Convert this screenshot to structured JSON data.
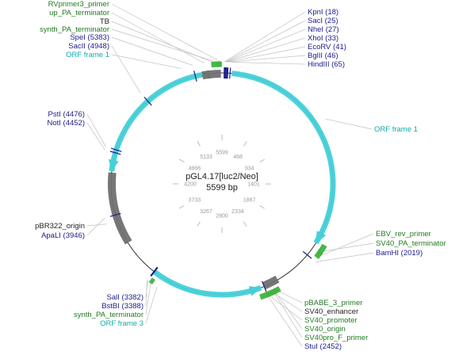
{
  "plasmid": {
    "name": "pGL4.17[luc2/Neo]",
    "length_label": "5599 bp",
    "length": 5599
  },
  "ticks": [
    {
      "pos": 5599,
      "label": "5599"
    },
    {
      "pos": 468,
      "label": "468"
    },
    {
      "pos": 934,
      "label": "934"
    },
    {
      "pos": 1401,
      "label": "1401"
    },
    {
      "pos": 1867,
      "label": "1867"
    },
    {
      "pos": 2334,
      "label": "2334"
    },
    {
      "pos": 2800,
      "label": "2800"
    },
    {
      "pos": 3267,
      "label": "3267"
    },
    {
      "pos": 3733,
      "label": "3733"
    },
    {
      "pos": 4200,
      "label": "4200"
    },
    {
      "pos": 4666,
      "label": "4666"
    },
    {
      "pos": 5133,
      "label": "5133"
    }
  ],
  "colors": {
    "backbone": "#333333",
    "orf": "#44d0d8",
    "primer": "#3fb33f",
    "region": "#707070",
    "site": "#1a1a8c",
    "site_text": "#1a1a8c",
    "feature_text": "#207a20",
    "orf_text": "#10aaaa",
    "default_text": "#222222"
  },
  "arcs": [
    {
      "name": "ORF frame 1",
      "type": "orf",
      "start": 80,
      "end": 1900,
      "dir": 1
    },
    {
      "name": "ORF frame 1",
      "type": "orf",
      "start": 4300,
      "end": 5480,
      "dir": -1
    },
    {
      "name": "ORF frame 3",
      "type": "orf",
      "start": 2480,
      "end": 3380,
      "dir": -1
    },
    {
      "name": "pBR322_origin",
      "type": "region",
      "start": 3700,
      "end": 4290,
      "dir": 0
    },
    {
      "name": "SV40_origin",
      "type": "region",
      "start": 2330,
      "end": 2450,
      "dir": 0
    },
    {
      "name": "TB",
      "type": "region",
      "start": 5480,
      "end": 5590,
      "dir": 0
    },
    {
      "name": "up_PA_terminator",
      "type": "region",
      "start": 5440,
      "end": 5500,
      "dir": 0
    },
    {
      "name": "synth_PA_terminator",
      "type": "primer",
      "start": 5520,
      "end": 5595,
      "dir": 0
    },
    {
      "name": "EBV_rev_primer",
      "type": "primer",
      "start": 1930,
      "end": 1990,
      "dir": 1
    },
    {
      "name": "SV40_PA_terminator",
      "type": "primer",
      "start": 1880,
      "end": 1960,
      "dir": 0
    },
    {
      "name": "synth_PA_terminator",
      "type": "primer",
      "start": 3340,
      "end": 3370,
      "dir": 0
    },
    {
      "name": "SV40_enhancer",
      "type": "primer",
      "start": 2370,
      "end": 2460,
      "dir": 0
    },
    {
      "name": "SV40_promoter",
      "type": "primer",
      "start": 2400,
      "end": 2510,
      "dir": 0
    },
    {
      "name": "pBABE_3_primer",
      "type": "primer",
      "start": 2350,
      "end": 2380,
      "dir": 0
    },
    {
      "name": "SV40pro_F_primer",
      "type": "primer",
      "start": 2380,
      "end": 2420,
      "dir": 0
    },
    {
      "name": "RVprimer3_primer",
      "type": "primer",
      "start": 5555,
      "end": 5598,
      "dir": 1
    }
  ],
  "sites": [
    {
      "name": "KpnI",
      "pos": 18
    },
    {
      "name": "SacI",
      "pos": 25
    },
    {
      "name": "NheI",
      "pos": 27
    },
    {
      "name": "XhoI",
      "pos": 33
    },
    {
      "name": "EcoRV",
      "pos": 41
    },
    {
      "name": "BglII",
      "pos": 46
    },
    {
      "name": "HindIII",
      "pos": 65
    },
    {
      "name": "BamHI",
      "pos": 2019
    },
    {
      "name": "StuI",
      "pos": 2452
    },
    {
      "name": "SalI",
      "pos": 3382
    },
    {
      "name": "BstBI",
      "pos": 3388
    },
    {
      "name": "ApaLI",
      "pos": 3946
    },
    {
      "name": "NotI",
      "pos": 4452
    },
    {
      "name": "PstI",
      "pos": 4476
    },
    {
      "name": "SacII",
      "pos": 4948
    },
    {
      "name": "SpeI",
      "pos": 5383
    }
  ],
  "labels": [
    {
      "text": "RVprimer3_primer",
      "kind": "feature",
      "anchor": "end",
      "pos": 5590
    },
    {
      "text": "up_PA_terminator",
      "kind": "feature",
      "anchor": "end",
      "pos": 5470
    },
    {
      "text": "TB",
      "kind": "default",
      "anchor": "end",
      "pos": 5530
    },
    {
      "text": "synth_PA_terminator",
      "kind": "feature",
      "anchor": "end",
      "pos": 5560
    },
    {
      "text": "SpeI (5383)",
      "kind": "site",
      "anchor": "end",
      "pos": 5383
    },
    {
      "text": "SacII (4948)",
      "kind": "site",
      "anchor": "end",
      "pos": 4948
    },
    {
      "text": "ORF frame 1",
      "kind": "orf",
      "anchor": "end",
      "pos": 5300
    },
    {
      "text": "KpnI (18)",
      "kind": "site",
      "anchor": "start",
      "pos": 18
    },
    {
      "text": "SacI (25)",
      "kind": "site",
      "anchor": "start",
      "pos": 25
    },
    {
      "text": "NheI (27)",
      "kind": "site",
      "anchor": "start",
      "pos": 27
    },
    {
      "text": "XhoI (33)",
      "kind": "site",
      "anchor": "start",
      "pos": 33
    },
    {
      "text": "EcoRV (41)",
      "kind": "site",
      "anchor": "start",
      "pos": 41
    },
    {
      "text": "BglII (46)",
      "kind": "site",
      "anchor": "start",
      "pos": 46
    },
    {
      "text": "HindIII (65)",
      "kind": "site",
      "anchor": "start",
      "pos": 65
    },
    {
      "text": "ORF frame 1",
      "kind": "orf",
      "anchor": "start",
      "pos": 900
    },
    {
      "text": "PstI (4476)",
      "kind": "site",
      "anchor": "end",
      "pos": 4476
    },
    {
      "text": "NotI (4452)",
      "kind": "site",
      "anchor": "end",
      "pos": 4452
    },
    {
      "text": "pBR322_origin",
      "kind": "default",
      "anchor": "end",
      "pos": 3900
    },
    {
      "text": "ApaLI (3946)",
      "kind": "site",
      "anchor": "end",
      "pos": 3946
    },
    {
      "text": "EBV_rev_primer",
      "kind": "feature",
      "anchor": "start",
      "pos": 1960
    },
    {
      "text": "SV40_PA_terminator",
      "kind": "feature",
      "anchor": "start",
      "pos": 1920
    },
    {
      "text": "BamHI (2019)",
      "kind": "site",
      "anchor": "start",
      "pos": 2019
    },
    {
      "text": "SalI (3382)",
      "kind": "site",
      "anchor": "end",
      "pos": 3382
    },
    {
      "text": "BstBI (3388)",
      "kind": "site",
      "anchor": "end",
      "pos": 3388
    },
    {
      "text": "synth_PA_terminator",
      "kind": "feature",
      "anchor": "end",
      "pos": 3355
    },
    {
      "text": "ORF frame 3",
      "kind": "orf",
      "anchor": "end",
      "pos": 3300
    },
    {
      "text": "pBABE_3_primer",
      "kind": "feature",
      "anchor": "start",
      "pos": 2365
    },
    {
      "text": "SV40_enhancer",
      "kind": "default",
      "anchor": "start",
      "pos": 2400
    },
    {
      "text": "SV40_promoter",
      "kind": "feature",
      "anchor": "start",
      "pos": 2440
    },
    {
      "text": "SV40_origin",
      "kind": "feature",
      "anchor": "start",
      "pos": 2390
    },
    {
      "text": "SV40pro_F_primer",
      "kind": "feature",
      "anchor": "start",
      "pos": 2400
    },
    {
      "text": "StuI (2452)",
      "kind": "site",
      "anchor": "start",
      "pos": 2452
    }
  ]
}
